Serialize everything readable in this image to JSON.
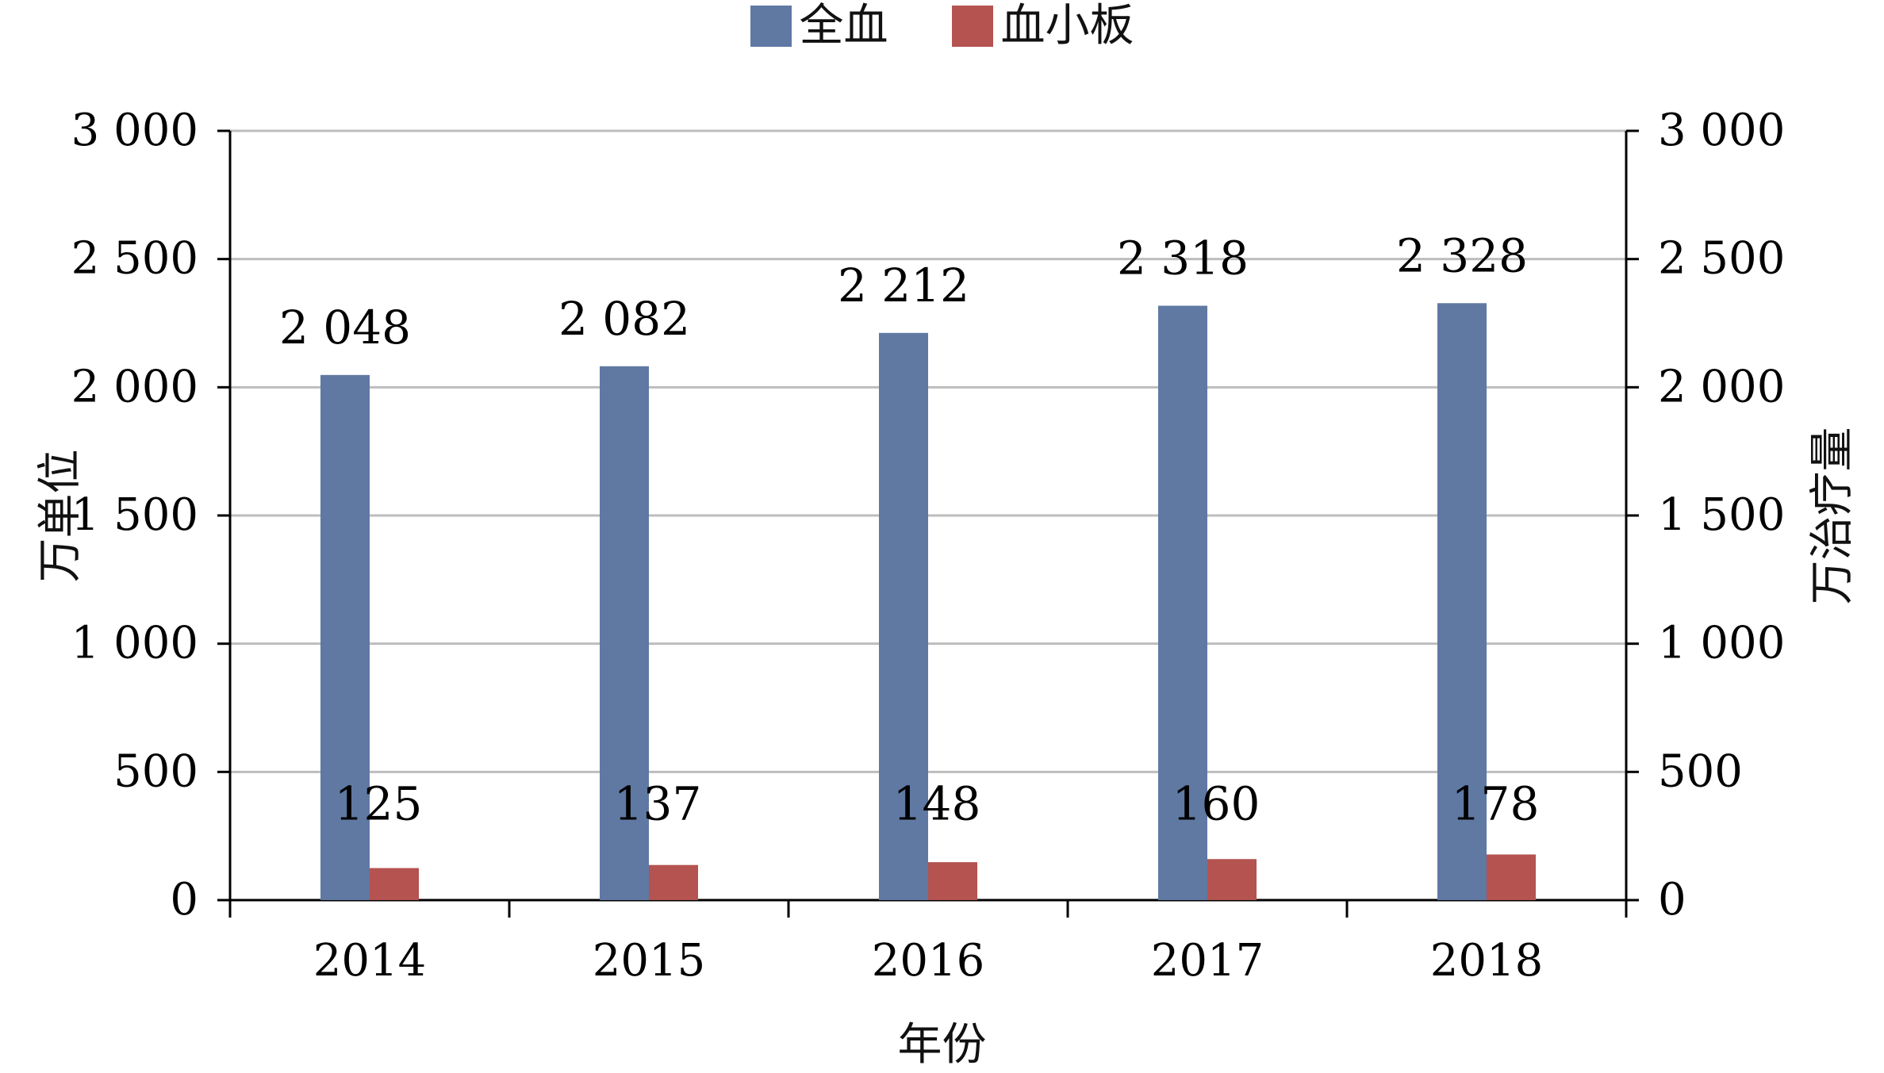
{
  "chart_data": {
    "type": "bar",
    "categories": [
      "2014",
      "2015",
      "2016",
      "2017",
      "2018"
    ],
    "series": [
      {
        "name": "全血",
        "values": [
          2048,
          2082,
          2212,
          2318,
          2328
        ],
        "labels": [
          "2 048",
          "2 082",
          "2 212",
          "2 318",
          "2 328"
        ],
        "color": "#5f79a3",
        "axis": "left"
      },
      {
        "name": "血小板",
        "values": [
          125,
          137,
          148,
          160,
          178
        ],
        "labels": [
          "125",
          "137",
          "148",
          "160",
          "178"
        ],
        "color": "#b45350",
        "axis": "right"
      }
    ],
    "xlabel": "年份",
    "ylabel_left": "万单位",
    "ylabel_right": "万治疗量",
    "ylim": [
      0,
      3000
    ],
    "yticks": [
      0,
      500,
      1000,
      1500,
      2000,
      2500,
      3000
    ],
    "ytick_labels": [
      "0",
      "500",
      "1 000",
      "1 500",
      "2 000",
      "2 500",
      "3 000"
    ],
    "grid": true,
    "legend_position": "top-center"
  }
}
